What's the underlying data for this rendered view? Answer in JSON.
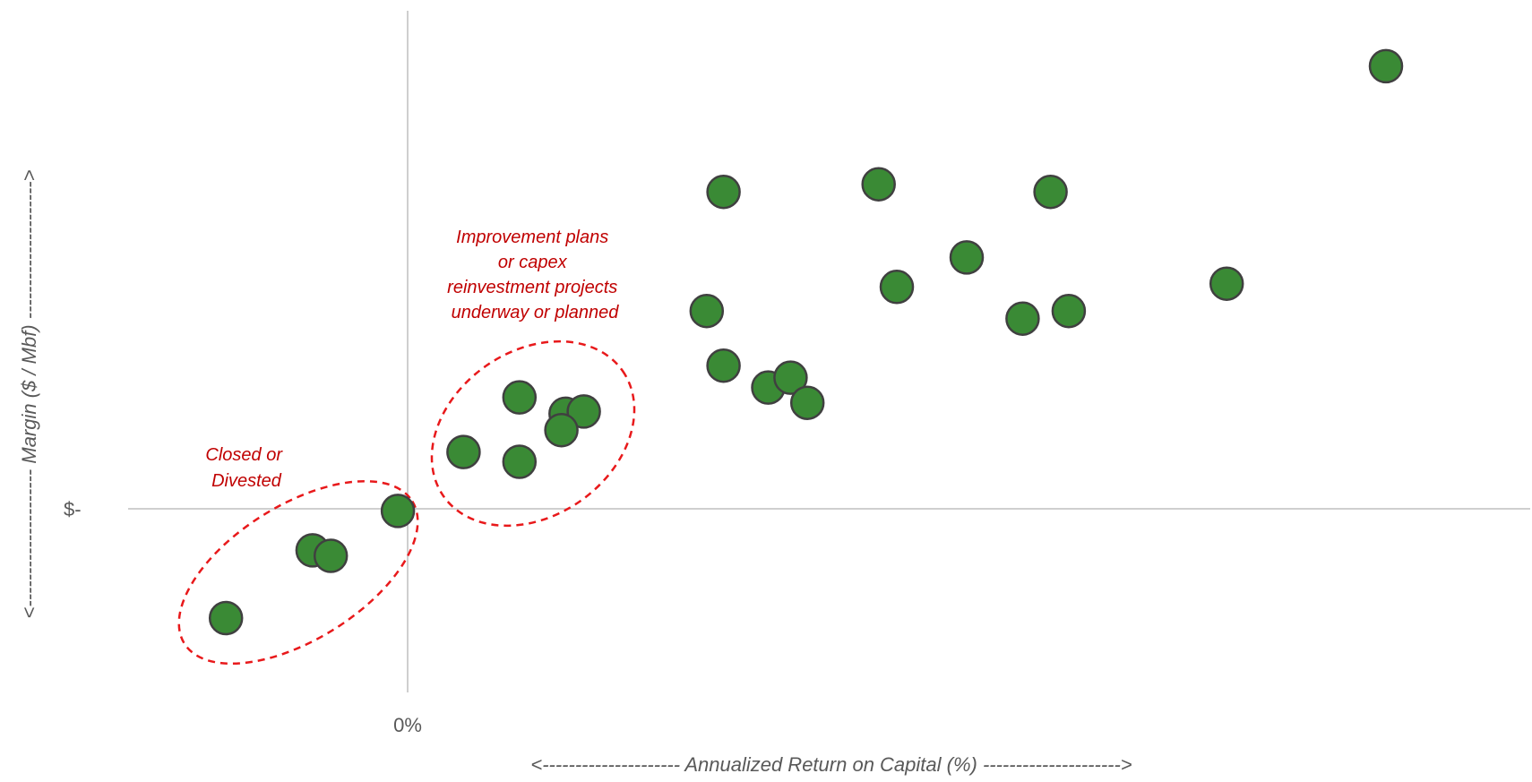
{
  "chart_data": {
    "type": "scatter",
    "xlabel": "<--------------------- Annualized Return on Capital (%) --------------------->",
    "ylabel": "<--------------------- Margin ($ / Mbf) --------------------->",
    "x_tick_labels": [
      "0%"
    ],
    "y_tick_labels": [
      "$-"
    ],
    "xlim": [
      -0.2,
      0.8
    ],
    "ylim": [
      -0.21,
      0.57
    ],
    "grid": false,
    "points": [
      {
        "x": -0.13,
        "y": -0.1
      },
      {
        "x": -0.068,
        "y": -0.038
      },
      {
        "x": -0.055,
        "y": -0.043
      },
      {
        "x": -0.007,
        "y": -0.002
      },
      {
        "x": 0.04,
        "y": 0.052
      },
      {
        "x": 0.08,
        "y": 0.102
      },
      {
        "x": 0.08,
        "y": 0.043
      },
      {
        "x": 0.113,
        "y": 0.087
      },
      {
        "x": 0.126,
        "y": 0.089
      },
      {
        "x": 0.11,
        "y": 0.072
      },
      {
        "x": 0.214,
        "y": 0.181
      },
      {
        "x": 0.226,
        "y": 0.131
      },
      {
        "x": 0.226,
        "y": 0.29
      },
      {
        "x": 0.258,
        "y": 0.111
      },
      {
        "x": 0.274,
        "y": 0.12
      },
      {
        "x": 0.286,
        "y": 0.097
      },
      {
        "x": 0.337,
        "y": 0.297
      },
      {
        "x": 0.35,
        "y": 0.203
      },
      {
        "x": 0.4,
        "y": 0.23
      },
      {
        "x": 0.44,
        "y": 0.174
      },
      {
        "x": 0.46,
        "y": 0.29
      },
      {
        "x": 0.473,
        "y": 0.181
      },
      {
        "x": 0.586,
        "y": 0.206
      },
      {
        "x": 0.7,
        "y": 0.405
      }
    ],
    "annotations": [
      {
        "label": "closed",
        "lines": [
          "Closed or",
          "Divested"
        ]
      },
      {
        "label": "improvement",
        "lines": [
          "Improvement plans",
          "or capex",
          "reinvestment projects",
          "underway or planned"
        ]
      }
    ],
    "colors": {
      "point_fill": "#3a8a35",
      "point_stroke": "#404040",
      "axis": "#bfbfbf",
      "annotation": "#c00000",
      "ellipse": "#e8191b"
    }
  }
}
